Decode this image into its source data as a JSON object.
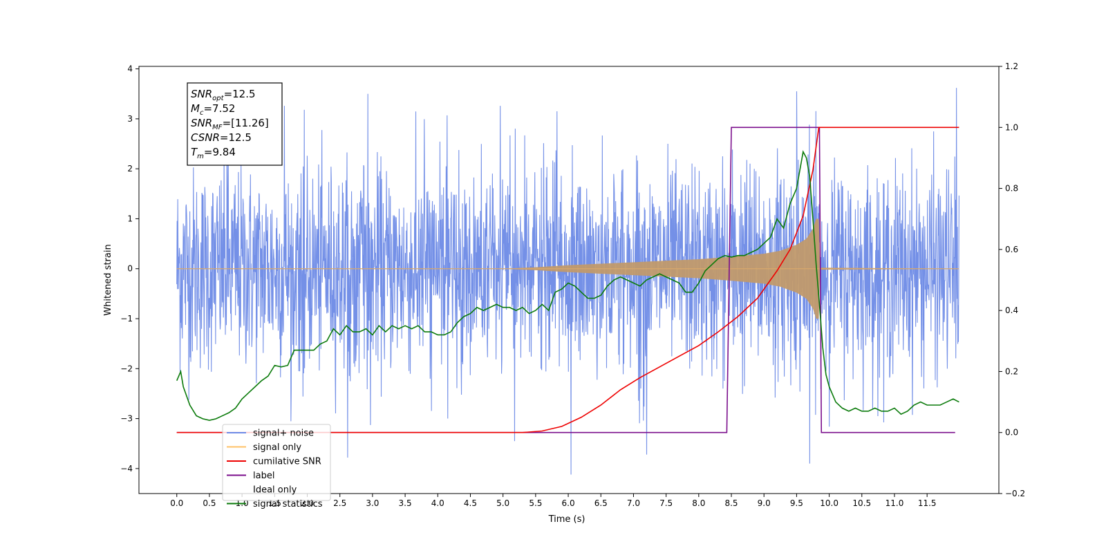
{
  "chart_data": {
    "type": "line",
    "xlabel": "Time (s)",
    "ylabel": "Whitened strain",
    "xlim": [
      -0.58,
      12.6
    ],
    "ylim": [
      -4.5,
      4.05
    ],
    "y2lim": [
      -0.2,
      1.2
    ],
    "x_ticks": [
      0.0,
      0.5,
      1.0,
      1.5,
      2.0,
      2.5,
      3.0,
      3.5,
      4.0,
      4.5,
      5.0,
      5.5,
      6.0,
      6.5,
      7.0,
      7.5,
      8.0,
      8.5,
      9.0,
      9.5,
      10.0,
      10.5,
      11.0,
      11.5
    ],
    "x_tick_labels": [
      "0.0",
      "0.5",
      "1.0",
      "1.5",
      "2.0",
      "2.5",
      "3.0",
      "3.5",
      "4.0",
      "4.5",
      "5.0",
      "5.5",
      "6.0",
      "6.5",
      "7.0",
      "7.5",
      "8.0",
      "8.5",
      "9.0",
      "9.5",
      "10.0",
      "10.5",
      "11.0",
      "11.5"
    ],
    "y_ticks": [
      4,
      3,
      2,
      1,
      0,
      -1,
      -2,
      -3,
      -4
    ],
    "y_tick_labels": [
      "4",
      "3",
      "2",
      "1",
      "0",
      "−1",
      "−2",
      "−3",
      "−4"
    ],
    "y2_ticks": [
      1.2,
      1.0,
      0.8,
      0.6,
      0.4,
      0.2,
      0.0,
      -0.2
    ],
    "y2_tick_labels": [
      "1.2",
      "1.0",
      "0.8",
      "0.6",
      "0.4",
      "0.2",
      "0.0",
      "−0.2"
    ],
    "grid": false,
    "legend_position": "lower-left",
    "annotation": {
      "lines": [
        {
          "base": "SNR",
          "sub": "opt",
          "value": "=12.5"
        },
        {
          "base": "M",
          "sub": "c",
          "value": "=7.52"
        },
        {
          "base": "SNR",
          "sub": "MF",
          "value": "=[11.26]"
        },
        {
          "base": "CSNR",
          "sub": "",
          "value": "=12.5"
        },
        {
          "base": "T",
          "sub": "m",
          "value": "=9.84"
        }
      ]
    },
    "series": [
      {
        "name": "signal+ noise",
        "color": "#6d8ae6",
        "axis": "left",
        "description_noise_amplitude": 1.0,
        "x_range": [
          0.0,
          11.99
        ],
        "peak_values": [
          {
            "x": 0.77,
            "y": 3.26
          },
          {
            "x": 1.65,
            "y": 3.26
          },
          {
            "x": 2.93,
            "y": 3.5
          },
          {
            "x": 4.96,
            "y": 3.26
          },
          {
            "x": 5.83,
            "y": 3.15
          },
          {
            "x": 9.5,
            "y": 3.55
          },
          {
            "x": 11.95,
            "y": 3.62
          },
          {
            "x": 6.04,
            "y": -4.12
          },
          {
            "x": 7.2,
            "y": -3.72
          },
          {
            "x": 9.7,
            "y": -3.9
          },
          {
            "x": 2.62,
            "y": -3.78
          },
          {
            "x": 5.18,
            "y": -3.45
          }
        ]
      },
      {
        "name": "signal only",
        "color": "#ffc266",
        "axis": "left",
        "envelope_x": [
          0.0,
          5.0,
          5.5,
          6.0,
          6.5,
          7.0,
          7.5,
          8.0,
          8.5,
          9.0,
          9.25,
          9.5,
          9.65,
          9.75,
          9.8,
          9.84,
          9.86,
          11.99
        ],
        "envelope_y": [
          0.0,
          0.0,
          0.03,
          0.07,
          0.1,
          0.13,
          0.16,
          0.19,
          0.24,
          0.3,
          0.36,
          0.48,
          0.6,
          0.8,
          1.0,
          1.0,
          0.02,
          0.0
        ]
      },
      {
        "name": "cumilative SNR",
        "color": "#ee0000",
        "axis": "right",
        "x": [
          0.0,
          5.0,
          5.3,
          5.6,
          5.9,
          6.2,
          6.5,
          6.8,
          7.1,
          7.4,
          7.7,
          8.0,
          8.3,
          8.6,
          8.9,
          9.2,
          9.4,
          9.6,
          9.75,
          9.84,
          11.99
        ],
        "y": [
          0.0,
          0.0,
          0.0,
          0.005,
          0.02,
          0.05,
          0.09,
          0.14,
          0.18,
          0.215,
          0.25,
          0.285,
          0.33,
          0.38,
          0.44,
          0.53,
          0.6,
          0.71,
          0.86,
          1.0,
          1.0
        ]
      },
      {
        "name": "label",
        "color": "#7b0e8c",
        "axis": "right",
        "x": [
          0.0,
          8.43,
          8.5,
          9.85,
          9.88,
          11.93
        ],
        "y": [
          0.0,
          0.0,
          1.0,
          1.0,
          0.0,
          0.0
        ]
      },
      {
        "name": "Ideal only",
        "color": "#ffffff",
        "axis": "right",
        "x": [],
        "y": []
      },
      {
        "name": "signal statistics",
        "color": "#0a7a0a",
        "axis": "right",
        "x": [
          0.0,
          0.06,
          0.1,
          0.2,
          0.3,
          0.4,
          0.5,
          0.6,
          0.7,
          0.8,
          0.9,
          1.0,
          1.1,
          1.2,
          1.3,
          1.4,
          1.5,
          1.6,
          1.7,
          1.8,
          1.9,
          2.0,
          2.1,
          2.2,
          2.3,
          2.4,
          2.5,
          2.6,
          2.7,
          2.8,
          2.9,
          3.0,
          3.1,
          3.2,
          3.3,
          3.4,
          3.5,
          3.6,
          3.7,
          3.8,
          3.9,
          4.0,
          4.1,
          4.2,
          4.3,
          4.4,
          4.5,
          4.6,
          4.7,
          4.8,
          4.9,
          5.0,
          5.1,
          5.2,
          5.3,
          5.4,
          5.5,
          5.6,
          5.7,
          5.8,
          5.9,
          6.0,
          6.1,
          6.2,
          6.3,
          6.4,
          6.5,
          6.6,
          6.7,
          6.8,
          6.9,
          7.0,
          7.1,
          7.2,
          7.3,
          7.4,
          7.5,
          7.6,
          7.7,
          7.8,
          7.9,
          8.0,
          8.1,
          8.2,
          8.3,
          8.4,
          8.5,
          8.6,
          8.7,
          8.8,
          8.9,
          9.0,
          9.1,
          9.2,
          9.3,
          9.4,
          9.5,
          9.6,
          9.65,
          9.7,
          9.75,
          9.8,
          9.85,
          9.9,
          9.95,
          10.0,
          10.1,
          10.2,
          10.3,
          10.4,
          10.5,
          10.6,
          10.7,
          10.8,
          10.9,
          11.0,
          11.1,
          11.2,
          11.3,
          11.4,
          11.5,
          11.6,
          11.7,
          11.8,
          11.9,
          11.99
        ],
        "y": [
          0.17,
          0.2,
          0.15,
          0.09,
          0.055,
          0.045,
          0.04,
          0.045,
          0.055,
          0.065,
          0.08,
          0.11,
          0.13,
          0.15,
          0.17,
          0.185,
          0.22,
          0.215,
          0.22,
          0.27,
          0.27,
          0.27,
          0.27,
          0.29,
          0.3,
          0.34,
          0.32,
          0.35,
          0.33,
          0.33,
          0.34,
          0.32,
          0.35,
          0.33,
          0.35,
          0.34,
          0.35,
          0.34,
          0.35,
          0.33,
          0.33,
          0.32,
          0.32,
          0.33,
          0.36,
          0.38,
          0.39,
          0.41,
          0.4,
          0.41,
          0.42,
          0.41,
          0.41,
          0.4,
          0.41,
          0.39,
          0.4,
          0.42,
          0.4,
          0.46,
          0.47,
          0.49,
          0.48,
          0.46,
          0.44,
          0.44,
          0.45,
          0.48,
          0.5,
          0.51,
          0.5,
          0.49,
          0.48,
          0.5,
          0.51,
          0.52,
          0.51,
          0.5,
          0.49,
          0.46,
          0.46,
          0.49,
          0.53,
          0.55,
          0.57,
          0.58,
          0.575,
          0.58,
          0.58,
          0.59,
          0.6,
          0.62,
          0.64,
          0.7,
          0.67,
          0.75,
          0.8,
          0.92,
          0.9,
          0.84,
          0.7,
          0.55,
          0.42,
          0.28,
          0.19,
          0.15,
          0.1,
          0.08,
          0.07,
          0.08,
          0.07,
          0.07,
          0.08,
          0.07,
          0.07,
          0.08,
          0.06,
          0.07,
          0.09,
          0.1,
          0.09,
          0.09,
          0.09,
          0.1,
          0.11,
          0.1
        ]
      }
    ]
  }
}
